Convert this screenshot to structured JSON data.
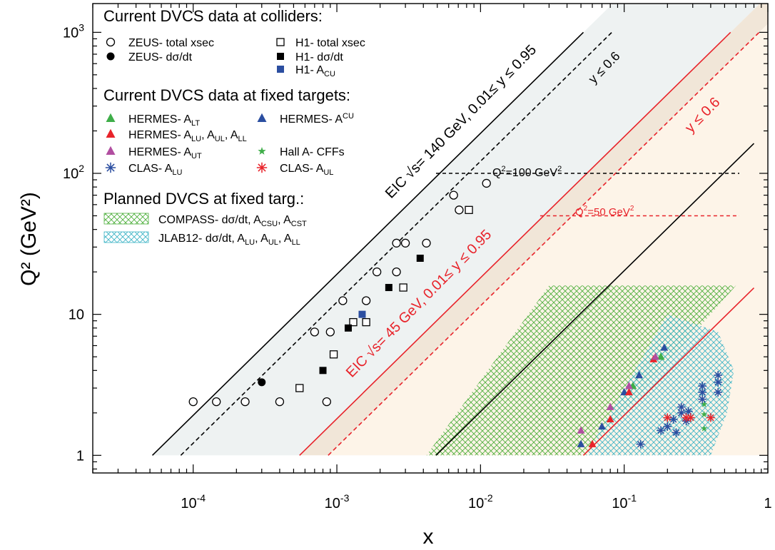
{
  "chart_data": {
    "type": "scatter",
    "xlabel": "x",
    "ylabel": "Q² (GeV²)",
    "x_scale": "log",
    "y_scale": "log",
    "xlim": [
      2e-05,
      1
    ],
    "ylim": [
      0.75,
      1600
    ],
    "x_ticks": [
      {
        "v": 0.0001,
        "b": "10",
        "e": "-4"
      },
      {
        "v": 0.001,
        "b": "10",
        "e": "-3"
      },
      {
        "v": 0.01,
        "b": "10",
        "e": "-2"
      },
      {
        "v": 0.1,
        "b": "10",
        "e": "-1"
      },
      {
        "v": 1,
        "b": "1",
        "e": ""
      }
    ],
    "y_ticks": [
      {
        "v": 1,
        "b": "1",
        "e": ""
      },
      {
        "v": 10,
        "b": "10",
        "e": ""
      },
      {
        "v": 100,
        "b": "10",
        "e": "2"
      },
      {
        "v": 1000,
        "b": "10",
        "e": "3"
      }
    ],
    "colors": {
      "blue": "#2b4ea0",
      "red": "#e8232a",
      "green": "#3fae49",
      "magenta": "#b14ea0",
      "band_140": "#eef2f2",
      "band_45": "#f1e6d8",
      "band_low": "#fdf4e8",
      "compass": "#4fb03e",
      "jlab": "#3fb5c6"
    },
    "lines": [
      {
        "name": "EIC 140 GeV y=0.95",
        "points": [
          [
            5.2e-05,
            1
          ],
          [
            0.052,
            1000
          ]
        ],
        "color": "#000000",
        "dash": false
      },
      {
        "name": "EIC 140 GeV y=0.6",
        "points": [
          [
            8.2e-05,
            1
          ],
          [
            0.082,
            1000
          ]
        ],
        "color": "#000000",
        "dash": true
      },
      {
        "name": "EIC 45 GeV y=0.95",
        "points": [
          [
            0.00055,
            1
          ],
          [
            0.55,
            1000
          ]
        ],
        "color": "#e8232a",
        "dash": false
      },
      {
        "name": "EIC 45 GeV y=0.6",
        "points": [
          [
            0.00087,
            1
          ],
          [
            0.87,
            1000
          ]
        ],
        "color": "#e8232a",
        "dash": true
      },
      {
        "name": "EIC 45 GeV y=0.01 (Q2 100)",
        "points": [
          [
            0.0049,
            1
          ],
          [
            0.8,
            163
          ]
        ],
        "color": "#000000",
        "dash": false
      },
      {
        "name": "EIC 45 GeV y=0.01 (Q2 50)",
        "points": [
          [
            0.052,
            1
          ],
          [
            0.8,
            15.4
          ]
        ],
        "color": "#e8232a",
        "dash": false
      }
    ],
    "hlines": [
      {
        "label": "Q²=100 GeV²",
        "y": 100,
        "x_from": 0.0049,
        "x_to": 1,
        "color": "#000000"
      },
      {
        "label": "Q²=50 GeV²",
        "y": 50,
        "x_from": 0.026,
        "x_to": 1,
        "color": "#e8232a"
      }
    ],
    "line_labels": [
      {
        "text": "EIC √s= 140 GeV, 0.01≤ y ≤ 0.95",
        "color": "#000000"
      },
      {
        "text": "y ≤ 0.6",
        "color": "#000000"
      },
      {
        "text": "EIC √s= 45 GeV, 0.01≤ y ≤ 0.95",
        "color": "#e8232a"
      },
      {
        "text": "y ≤ 0.6",
        "color": "#e8232a"
      }
    ],
    "regions": [
      {
        "name": "COMPASS",
        "points": [
          [
            0.0042,
            1
          ],
          [
            0.054,
            1
          ],
          [
            0.6,
            16
          ],
          [
            0.03,
            16
          ]
        ]
      },
      {
        "name": "JLAB12",
        "points": [
          [
            0.054,
            1
          ],
          [
            0.4,
            1
          ],
          [
            0.6,
            5.5
          ],
          [
            0.2,
            10
          ],
          [
            0.054,
            1
          ]
        ]
      }
    ],
    "series": [
      {
        "name": "ZEUS- total xsec",
        "marker": "circle-open",
        "color": "#000000",
        "points": [
          [
            0.0001,
            2.4
          ],
          [
            0.000145,
            2.4
          ],
          [
            0.00023,
            2.4
          ],
          [
            0.0004,
            2.4
          ],
          [
            0.00085,
            2.4
          ],
          [
            0.0007,
            7.5
          ],
          [
            0.0009,
            7.5
          ],
          [
            0.0011,
            12.5
          ],
          [
            0.0016,
            12.5
          ],
          [
            0.0019,
            20
          ],
          [
            0.0026,
            20
          ],
          [
            0.0026,
            32
          ],
          [
            0.003,
            32
          ],
          [
            0.0042,
            32
          ],
          [
            0.0065,
            70
          ],
          [
            0.0071,
            55
          ],
          [
            0.011,
            85
          ]
        ]
      },
      {
        "name": "ZEUS- dσ/dt",
        "marker": "circle-filled",
        "color": "#000000",
        "points": [
          [
            0.0003,
            3.3
          ]
        ]
      },
      {
        "name": "H1- total xsec",
        "marker": "square-open",
        "color": "#000000",
        "points": [
          [
            0.00055,
            3
          ],
          [
            0.00095,
            5.2
          ],
          [
            0.0013,
            8.8
          ],
          [
            0.0016,
            8.8
          ],
          [
            0.0029,
            15.5
          ],
          [
            0.0083,
            55
          ]
        ]
      },
      {
        "name": "H1- dσ/dt",
        "marker": "square-filled",
        "color": "#000000",
        "points": [
          [
            0.0008,
            4
          ],
          [
            0.0012,
            8
          ],
          [
            0.0023,
            15.5
          ],
          [
            0.0038,
            25
          ]
        ]
      },
      {
        "name": "H1- A_CU",
        "marker": "square-filled",
        "color": "#2b4ea0",
        "points": [
          [
            0.0015,
            10
          ]
        ]
      },
      {
        "name": "HERMES- A_LT",
        "marker": "triangle",
        "color": "#3fae49",
        "points": [
          [
            0.115,
            3.1
          ],
          [
            0.18,
            5
          ]
        ]
      },
      {
        "name": "HERMES- A_CU",
        "marker": "triangle",
        "color": "#2b4ea0",
        "points": [
          [
            0.05,
            1.2
          ],
          [
            0.07,
            1.6
          ],
          [
            0.1,
            2.8
          ],
          [
            0.127,
            3.7
          ],
          [
            0.19,
            5.8
          ]
        ]
      },
      {
        "name": "HERMES- A_LU, A_UL, A_LL",
        "marker": "triangle",
        "color": "#e8232a",
        "points": [
          [
            0.06,
            1.2
          ],
          [
            0.08,
            1.8
          ],
          [
            0.108,
            2.8
          ],
          [
            0.16,
            4.8
          ]
        ]
      },
      {
        "name": "HERMES- A_UT",
        "marker": "triangle",
        "color": "#b14ea0",
        "points": [
          [
            0.05,
            1.5
          ],
          [
            0.08,
            2.2
          ],
          [
            0.108,
            3.1
          ],
          [
            0.165,
            5
          ]
        ]
      },
      {
        "name": "Hall A- CFFs",
        "marker": "star",
        "color": "#3fae49",
        "points": [
          [
            0.36,
            1.55
          ],
          [
            0.36,
            1.95
          ],
          [
            0.36,
            2.3
          ]
        ]
      },
      {
        "name": "CLAS- A_LU",
        "marker": "asterisk",
        "color": "#2b4ea0",
        "points": [
          [
            0.13,
            1.2
          ],
          [
            0.18,
            1.5
          ],
          [
            0.2,
            1.6
          ],
          [
            0.22,
            1.8
          ],
          [
            0.23,
            1.45
          ],
          [
            0.25,
            2
          ],
          [
            0.25,
            2.2
          ],
          [
            0.27,
            1.75
          ],
          [
            0.28,
            2.05
          ],
          [
            0.35,
            2.5
          ],
          [
            0.35,
            2.8
          ],
          [
            0.35,
            3.1
          ],
          [
            0.45,
            2.8
          ],
          [
            0.45,
            3.3
          ],
          [
            0.45,
            3.7
          ]
        ]
      },
      {
        "name": "CLAS- A_UL",
        "marker": "asterisk",
        "color": "#e8232a",
        "points": [
          [
            0.2,
            1.85
          ],
          [
            0.27,
            1.85
          ],
          [
            0.29,
            1.85
          ],
          [
            0.4,
            1.85
          ]
        ]
      }
    ],
    "legend": {
      "heading_colliders": "Current DVCS data at colliders:",
      "heading_fixed": "Current DVCS data at fixed targets:",
      "heading_planned": "Planned DVCS at fixed targ.:",
      "zeus_total": "ZEUS- total xsec",
      "zeus_dsdt": "ZEUS- dσ/dt",
      "h1_total": "H1- total xsec",
      "h1_dsdt": "H1- dσ/dt",
      "h1_acu": {
        "main": "H1- A",
        "sub": "CU"
      },
      "hermes_alt": {
        "main": "HERMES- A",
        "sub": "LT"
      },
      "hermes_acu": {
        "main": "HERMES- A",
        "sup": "CU"
      },
      "hermes_alu": {
        "p1": "HERMES- A",
        "s1": "LU",
        "p2": ", A",
        "s2": "UL",
        "p3": ", A",
        "s3": "LL"
      },
      "hermes_aut": {
        "main": "HERMES- A",
        "sub": "UT"
      },
      "halla": "Hall A- CFFs",
      "clas_alu": {
        "main": "CLAS- A",
        "sub": "LU"
      },
      "clas_aul": {
        "main": "CLAS- A",
        "sub": "UL"
      },
      "compass": {
        "p1": "COMPASS- dσ/dt, A",
        "s1": "CSU",
        "p2": ", A",
        "s2": "CST"
      },
      "jlab": {
        "p1": "JLAB12- dσ/dt, A",
        "s1": "LU",
        "p2": ", A",
        "s2": "UL",
        "p3": ", A",
        "s3": "LL"
      }
    }
  }
}
